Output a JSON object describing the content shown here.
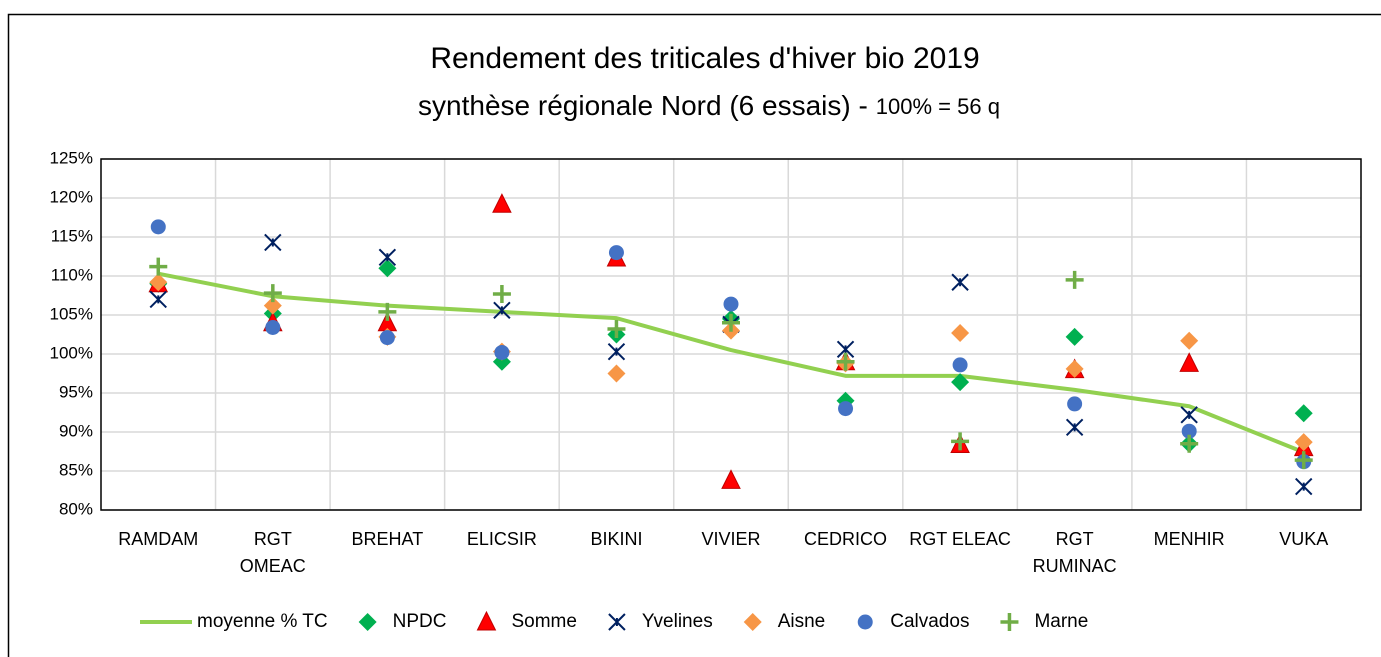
{
  "chart_data": {
    "type": "line-scatter",
    "title": "Rendement des triticales d'hiver bio 2019",
    "subtitle": "synthèse régionale Nord (6 essais) -",
    "subtitle_note": "100% = 56 q",
    "categories": [
      "RAMDAM",
      "RGT\nOMEAC",
      "BREHAT",
      "ELICSIR",
      "BIKINI",
      "VIVIER",
      "CEDRICO",
      "RGT ELEAC",
      "RGT\nRUMINAC",
      "MENHIR",
      "VUKA"
    ],
    "ylim": [
      80,
      125
    ],
    "yticks": [
      {
        "value": 80,
        "label": "80%"
      },
      {
        "value": 85,
        "label": "85%"
      },
      {
        "value": 90,
        "label": "90%"
      },
      {
        "value": 95,
        "label": "95%"
      },
      {
        "value": 100,
        "label": "100%"
      },
      {
        "value": 105,
        "label": "105%"
      },
      {
        "value": 110,
        "label": "110%"
      },
      {
        "value": 115,
        "label": "115%"
      },
      {
        "value": 120,
        "label": "120%"
      },
      {
        "value": 125,
        "label": "125%"
      }
    ],
    "grid": true,
    "legend": "bottom",
    "series": [
      {
        "name": "moyenne % TC",
        "color": "#92d050",
        "marker": "line",
        "values": [
          110.3,
          107.4,
          106.2,
          105.4,
          104.6,
          100.5,
          97.2,
          97.2,
          95.4,
          93.3,
          87.4
        ]
      },
      {
        "name": "NPDC",
        "color": "#00b050",
        "marker": "diamond",
        "values": [
          109,
          105.2,
          111,
          99,
          102.5,
          104.5,
          94,
          96.4,
          102.2,
          88.5,
          92.4
        ]
      },
      {
        "name": "Somme",
        "color": "#ff0000",
        "marker": "triangle",
        "values": [
          109,
          104,
          104,
          119.2,
          112.3,
          83.8,
          99,
          88.4,
          98,
          98.8,
          88
        ]
      },
      {
        "name": "Yvelines",
        "color": "#002060",
        "marker": "star",
        "values": [
          107,
          114.3,
          112.4,
          105.6,
          100.3,
          103.8,
          100.6,
          109.2,
          90.6,
          92.2,
          83
        ]
      },
      {
        "name": "Aisne",
        "color": "#f79646",
        "marker": "diamond",
        "values": [
          109.2,
          106.2,
          102.2,
          100.3,
          97.5,
          103,
          98.8,
          102.7,
          98.1,
          101.7,
          88.7
        ]
      },
      {
        "name": "Calvados",
        "color": "#4472c4",
        "marker": "circle",
        "values": [
          116.3,
          103.4,
          102.1,
          100.2,
          113,
          106.4,
          93,
          98.6,
          93.6,
          90.1,
          86.2
        ]
      },
      {
        "name": "Marne",
        "color": "#70ad47",
        "marker": "plus",
        "values": [
          111.2,
          107.8,
          105.4,
          107.7,
          103.2,
          104,
          99,
          88.8,
          109.5,
          88.5,
          86.4
        ]
      }
    ]
  }
}
